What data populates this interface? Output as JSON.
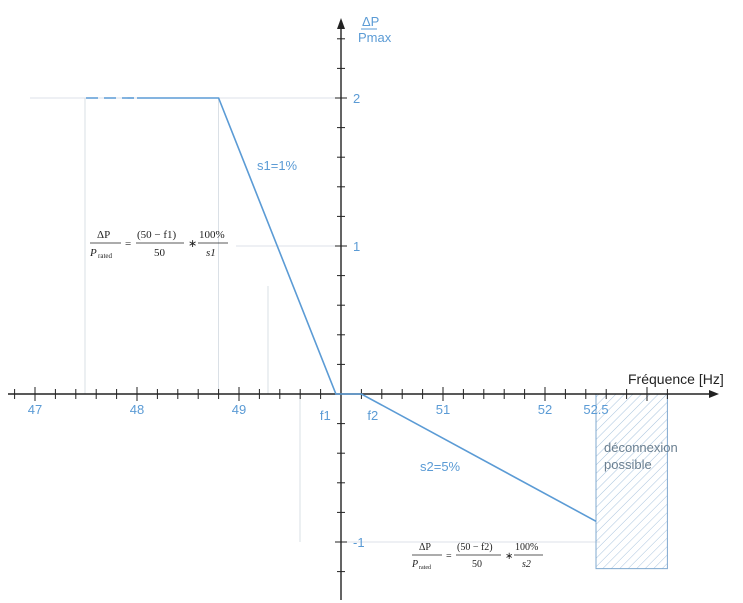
{
  "colors": {
    "curve": "#5b9bd5",
    "axis": "#222222",
    "guide": "#d0d8e0",
    "hatch": "#7fa8cf"
  },
  "chart_data": {
    "type": "line",
    "title": "",
    "xlabel": "Fréquence [Hz]",
    "ylabel": {
      "numerator": "ΔP",
      "denominator": "Pmax"
    },
    "xlim": [
      46.8,
      53.3
    ],
    "ylim": [
      -1.4,
      2.6
    ],
    "x_ticks": [
      {
        "value": 47,
        "label": "47"
      },
      {
        "value": 48,
        "label": "48"
      },
      {
        "value": 49,
        "label": "49"
      },
      {
        "value": 51,
        "label": "51"
      },
      {
        "value": 52,
        "label": "52"
      },
      {
        "value": 52.5,
        "label": "52.5"
      }
    ],
    "y_ticks": [
      {
        "value": 2,
        "label": "2"
      },
      {
        "value": 1,
        "label": "1"
      },
      {
        "value": -1,
        "label": "-1"
      }
    ],
    "special_ticks": [
      {
        "value": 49.95,
        "label": "f1"
      },
      {
        "value": 50.2,
        "label": "f2"
      }
    ],
    "series": [
      {
        "x": [
          47.5,
          48.8,
          49.95,
          50.2,
          52.5
        ],
        "y": [
          2,
          2,
          0,
          0,
          -0.86
        ],
        "dashed_until_x": 48.0
      }
    ],
    "annotations": {
      "s1": "s1=1%",
      "s2": "s2=5%",
      "zone": [
        "déconnexion",
        "possible"
      ],
      "formula1": {
        "lhs_num": "ΔP",
        "lhs_den": "P",
        "lhs_den_sub": "rated",
        "mid_num": "(50 − f1)",
        "mid_den": "50",
        "rhs_num": "100%",
        "rhs_den": "s1"
      },
      "formula2": {
        "lhs_num": "ΔP",
        "lhs_den": "P",
        "lhs_den_sub": "rated",
        "mid_num": "(50 − f2)",
        "mid_den": "50",
        "rhs_num": "100%",
        "rhs_den": "s2"
      }
    },
    "zone_range": {
      "x": [
        52.5,
        53.2
      ],
      "y": [
        -1.18,
        0
      ]
    },
    "grid": false
  }
}
